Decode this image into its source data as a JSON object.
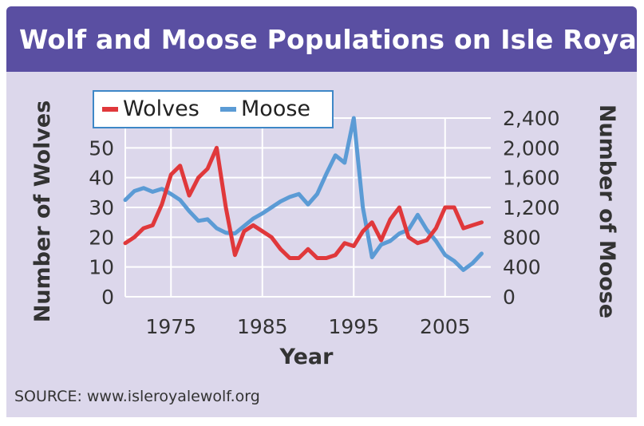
{
  "title": "Wolf and Moose Populations on Isle Royale",
  "source": "SOURCE: www.isleroyalewolf.org",
  "colors": {
    "header": "#5a4fa2",
    "panel": "#dcd7eb",
    "wolves": "#e0383b",
    "moose": "#5b9bd5",
    "legend_border": "#3e87c7"
  },
  "chart_data": {
    "type": "line",
    "title": "Wolf and Moose Populations on Isle Royale",
    "xlabel": "Year",
    "ylabel_left": "Number of Wolves",
    "ylabel_right": "Number of Moose",
    "x_ticks": [
      "1975",
      "1985",
      "1995",
      "2005"
    ],
    "x_tick_values": [
      1975,
      1985,
      1995,
      2005
    ],
    "y_left_ticks": [
      "0",
      "10",
      "20",
      "30",
      "40",
      "50"
    ],
    "y_left_tick_values": [
      0,
      10,
      20,
      30,
      40,
      50
    ],
    "y_right_ticks": [
      "0",
      "400",
      "800",
      "1,200",
      "1,600",
      "2,000",
      "2,400"
    ],
    "y_right_tick_values": [
      0,
      400,
      800,
      1200,
      1600,
      2000,
      2400
    ],
    "xlim": [
      1970,
      2010
    ],
    "ylim_left": [
      0,
      60
    ],
    "ylim_right": [
      0,
      2400
    ],
    "grid": true,
    "legend_position": "top-left",
    "series": [
      {
        "name": "Wolves",
        "axis": "left",
        "color": "#e0383b",
        "x": [
          1970,
          1971,
          1972,
          1973,
          1974,
          1975,
          1976,
          1977,
          1978,
          1979,
          1980,
          1981,
          1982,
          1983,
          1984,
          1985,
          1986,
          1987,
          1988,
          1989,
          1990,
          1991,
          1992,
          1993,
          1994,
          1995,
          1996,
          1997,
          1998,
          1999,
          2000,
          2001,
          2002,
          2003,
          2004,
          2005,
          2006,
          2007,
          2008,
          2009
        ],
        "y": [
          18,
          20,
          23,
          24,
          31,
          41,
          44,
          34,
          40,
          43,
          50,
          30,
          14,
          22,
          24,
          22,
          20,
          16,
          13,
          13,
          16,
          13,
          13,
          14,
          18,
          17,
          22,
          25,
          19,
          26,
          30,
          20,
          18,
          19,
          23,
          30,
          30,
          23,
          24,
          25
        ]
      },
      {
        "name": "Moose",
        "axis": "right",
        "color": "#5b9bd5",
        "x": [
          1970,
          1971,
          1972,
          1973,
          1974,
          1975,
          1976,
          1977,
          1978,
          1979,
          1980,
          1981,
          1982,
          1983,
          1984,
          1985,
          1986,
          1987,
          1988,
          1989,
          1990,
          1991,
          1992,
          1993,
          1994,
          1995,
          1996,
          1997,
          1998,
          1999,
          2000,
          2001,
          2002,
          2003,
          2004,
          2005,
          2006,
          2007,
          2008,
          2009
        ],
        "y": [
          1300,
          1420,
          1460,
          1410,
          1450,
          1380,
          1300,
          1150,
          1020,
          1040,
          920,
          860,
          850,
          950,
          1050,
          1120,
          1200,
          1280,
          1340,
          1380,
          1240,
          1380,
          1650,
          1900,
          1800,
          2400,
          1200,
          530,
          700,
          750,
          850,
          900,
          1100,
          900,
          750,
          560,
          480,
          360,
          450,
          580
        ]
      }
    ]
  }
}
